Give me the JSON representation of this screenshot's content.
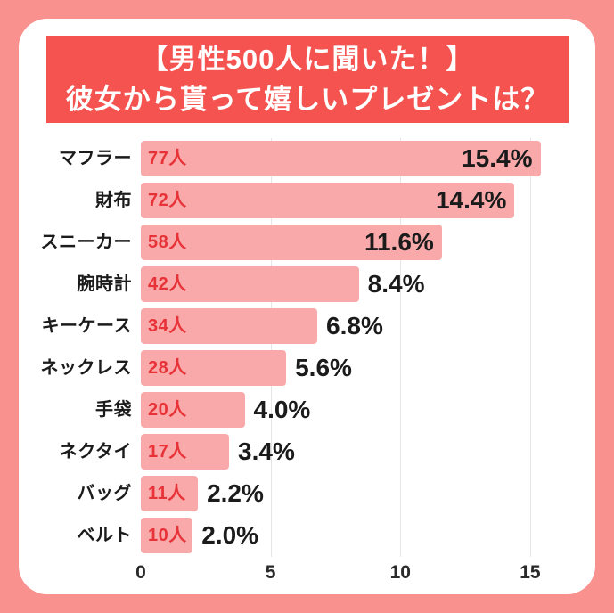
{
  "page": {
    "bg_color": "#f9918f"
  },
  "card": {
    "bg_color": "#ffffff"
  },
  "title_banner": {
    "bg_color": "#f5534f",
    "text_color": "#ffffff",
    "line1": "【男性500人に聞いた！】",
    "line2": "彼女から貰って嬉しいプレゼントは？"
  },
  "chart_data": {
    "type": "bar",
    "orientation": "horizontal",
    "title": "【男性500人に聞いた！】彼女から貰って嬉しいプレゼントは？",
    "categories": [
      "マフラー",
      "財布",
      "スニーカー",
      "腕時計",
      "キーケース",
      "ネックレス",
      "手袋",
      "ネクタイ",
      "バッグ",
      "ベルト"
    ],
    "counts": [
      77,
      72,
      58,
      42,
      34,
      28,
      20,
      17,
      11,
      10
    ],
    "percents": [
      15.4,
      14.4,
      11.6,
      8.4,
      6.8,
      5.6,
      4.0,
      3.4,
      2.2,
      2.0
    ],
    "count_suffix": "人",
    "percent_suffix": "%",
    "xlabel": "",
    "ylabel": "",
    "x_ticks": [
      0,
      5,
      10,
      15
    ],
    "x_max": 16,
    "grid": true,
    "legend": "none",
    "bar_color": "#f9a9a9",
    "count_label_color": "#e73238",
    "value_label_color": "#1b1b1b",
    "axis_label_color": "#2a2a2a",
    "gridline_color": "#e6e6e6",
    "label_inside_min": 10
  }
}
